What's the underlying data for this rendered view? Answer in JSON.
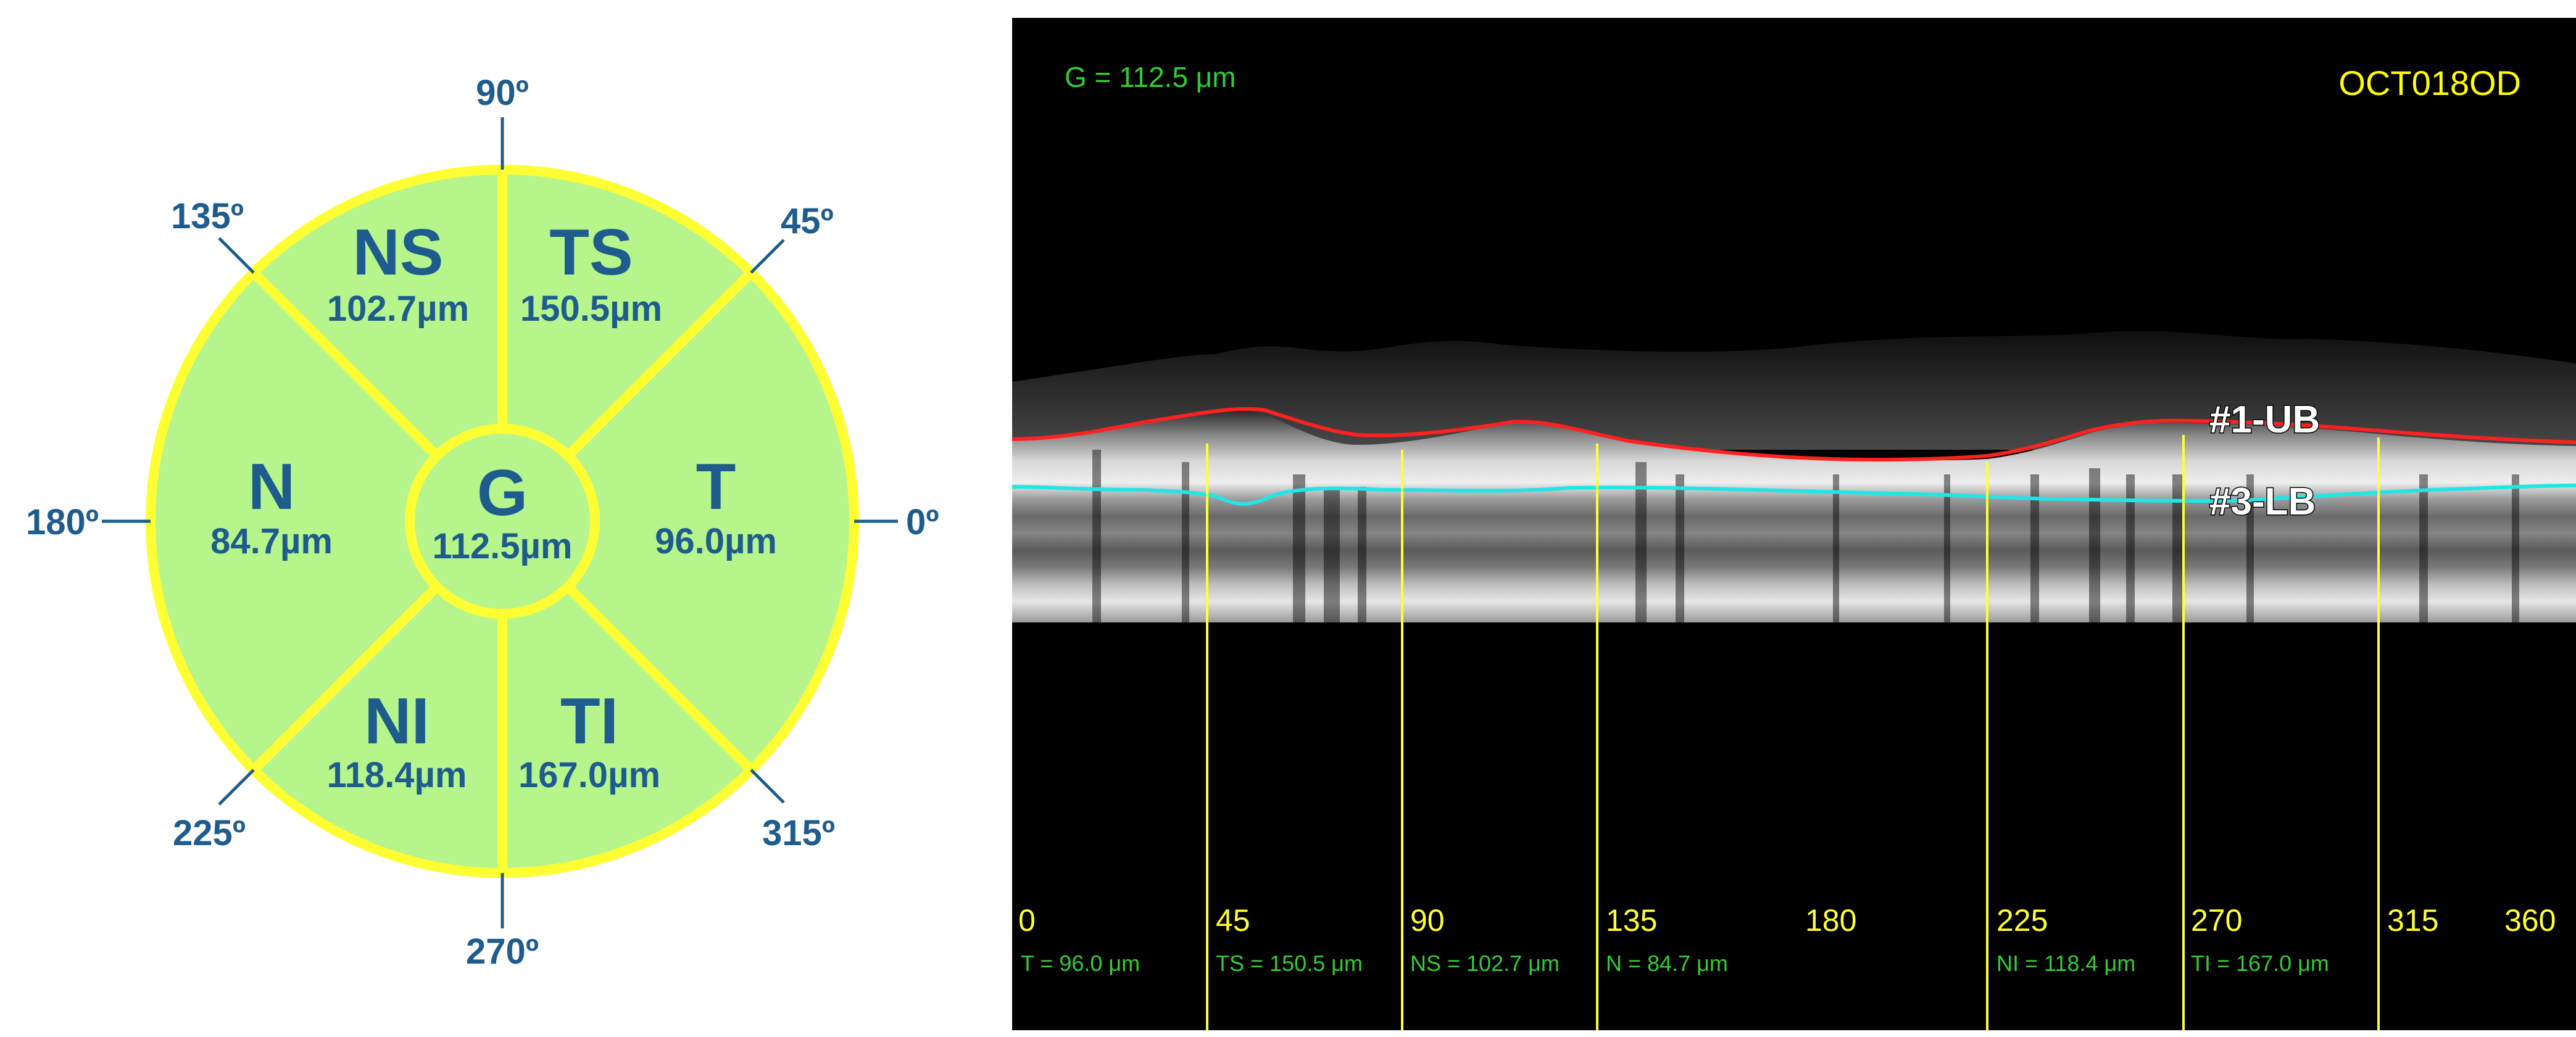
{
  "diagram": {
    "degree_labels": {
      "deg0": "0º",
      "deg45": "45º",
      "deg90": "90º",
      "deg135": "135º",
      "deg180": "180º",
      "deg225": "225º",
      "deg270": "270º",
      "deg315": "315º"
    },
    "sectors": {
      "G": {
        "name": "G",
        "value": "112.5µm"
      },
      "T": {
        "name": "T",
        "value": "96.0µm"
      },
      "TS": {
        "name": "TS",
        "value": "150.5µm"
      },
      "NS": {
        "name": "NS",
        "value": "102.7µm"
      },
      "N": {
        "name": "N",
        "value": "84.7µm"
      },
      "NI": {
        "name": "NI",
        "value": "118.4µm"
      },
      "TI": {
        "name": "TI",
        "value": "167.0µm"
      }
    },
    "colors": {
      "fill": "#b5f58c",
      "border": "#ffff33",
      "text": "#1f5c8e"
    }
  },
  "oct": {
    "id_label": "OCT018OD",
    "global_label": "G = 112.5 μm",
    "layer_labels": {
      "upper": "#1-UB",
      "lower": "#3-LB"
    },
    "angle_ticks": [
      "0",
      "45",
      "90",
      "135",
      "180",
      "225",
      "270",
      "315",
      "360"
    ],
    "sector_readouts": {
      "T": "T = 96.0 μm",
      "TS": "TS = 150.5 μm",
      "NS": "NS = 102.7 μm",
      "N": "N = 84.7 μm",
      "NI": "NI = 118.4 μm",
      "TI": "TI = 167.0 μm"
    },
    "colors": {
      "upper_boundary": "#ff2020",
      "lower_boundary": "#22e6e6",
      "divider": "#ffff33"
    }
  }
}
